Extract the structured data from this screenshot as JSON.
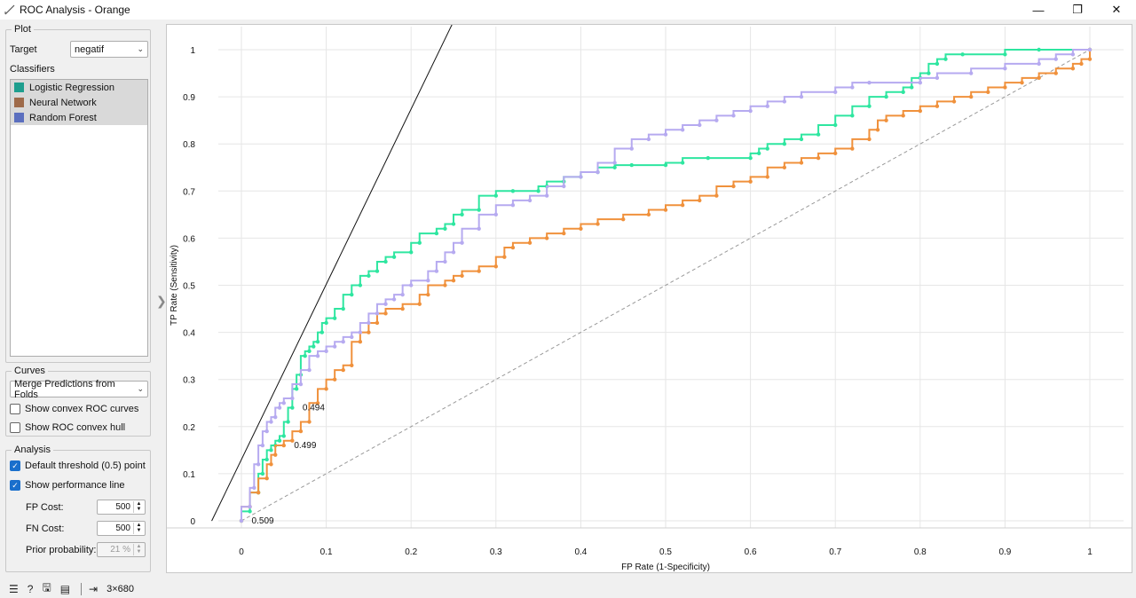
{
  "window": {
    "title": "ROC Analysis - Orange",
    "icons": [
      "app-icon",
      "minimize-icon",
      "restore-icon",
      "close-icon"
    ]
  },
  "left_panel": {
    "plot_group": {
      "title": "Plot",
      "target_label": "Target",
      "target_value": "negatif",
      "classifiers_label": "Classifiers",
      "classifiers": [
        {
          "name": "Logistic Regression",
          "color": "#1e9e8e"
        },
        {
          "name": "Neural Network",
          "color": "#9e6a4a"
        },
        {
          "name": "Random Forest",
          "color": "#5b6fbf"
        }
      ]
    },
    "curves_group": {
      "title": "Curves",
      "mode": "Merge Predictions from Folds",
      "convex_curves_label": "Show convex ROC curves",
      "convex_curves_checked": false,
      "convex_hull_label": "Show ROC convex hull",
      "convex_hull_checked": false
    },
    "analysis_group": {
      "title": "Analysis",
      "default_threshold_label": "Default threshold (0.5) point",
      "default_threshold_checked": true,
      "performance_line_label": "Show performance line",
      "performance_line_checked": true,
      "fp_cost_label": "FP Cost:",
      "fp_cost": "500",
      "fn_cost_label": "FN Cost:",
      "fn_cost": "500",
      "prior_label": "Prior probability:",
      "prior": "21 %"
    }
  },
  "status_bar": {
    "icons": [
      "menu-icon",
      "help-icon",
      "save-icon",
      "report-icon",
      "output-icon"
    ],
    "output_info": "3×680"
  },
  "chart_data": {
    "type": "line",
    "xlabel": "FP Rate (1-Specificity)",
    "ylabel": "TP Rate (Sensitivity)",
    "xlim": [
      0,
      1
    ],
    "ylim": [
      0,
      1
    ],
    "x_ticks": [
      "0",
      "0.1",
      "0.2",
      "0.3",
      "0.4",
      "0.5",
      "0.6",
      "0.7",
      "0.8",
      "0.9",
      "1"
    ],
    "y_ticks": [
      "0",
      "0.1",
      "0.2",
      "0.3",
      "0.4",
      "0.5",
      "0.6",
      "0.7",
      "0.8",
      "0.9",
      "1"
    ],
    "grid": true,
    "diagonal": true,
    "performance_line": {
      "slope": 3.72,
      "intercept": 0.13
    },
    "series": [
      {
        "color": "#2ee6a0",
        "points": [
          [
            0,
            0
          ],
          [
            0.01,
            0.02
          ],
          [
            0.02,
            0.06
          ],
          [
            0.025,
            0.1
          ],
          [
            0.03,
            0.13
          ],
          [
            0.035,
            0.15
          ],
          [
            0.04,
            0.16
          ],
          [
            0.045,
            0.17
          ],
          [
            0.05,
            0.18
          ],
          [
            0.055,
            0.21
          ],
          [
            0.06,
            0.24
          ],
          [
            0.065,
            0.28
          ],
          [
            0.07,
            0.31
          ],
          [
            0.075,
            0.35
          ],
          [
            0.08,
            0.36
          ],
          [
            0.085,
            0.37
          ],
          [
            0.09,
            0.38
          ],
          [
            0.095,
            0.4
          ],
          [
            0.1,
            0.42
          ],
          [
            0.11,
            0.43
          ],
          [
            0.12,
            0.45
          ],
          [
            0.13,
            0.48
          ],
          [
            0.14,
            0.5
          ],
          [
            0.15,
            0.52
          ],
          [
            0.16,
            0.53
          ],
          [
            0.17,
            0.55
          ],
          [
            0.18,
            0.56
          ],
          [
            0.2,
            0.57
          ],
          [
            0.21,
            0.59
          ],
          [
            0.23,
            0.61
          ],
          [
            0.24,
            0.62
          ],
          [
            0.25,
            0.63
          ],
          [
            0.26,
            0.65
          ],
          [
            0.28,
            0.66
          ],
          [
            0.3,
            0.69
          ],
          [
            0.32,
            0.7
          ],
          [
            0.35,
            0.7
          ],
          [
            0.36,
            0.71
          ],
          [
            0.38,
            0.72
          ],
          [
            0.4,
            0.73
          ],
          [
            0.42,
            0.74
          ],
          [
            0.44,
            0.75
          ],
          [
            0.46,
            0.755
          ],
          [
            0.5,
            0.755
          ],
          [
            0.52,
            0.76
          ],
          [
            0.55,
            0.77
          ],
          [
            0.6,
            0.77
          ],
          [
            0.61,
            0.78
          ],
          [
            0.62,
            0.79
          ],
          [
            0.64,
            0.8
          ],
          [
            0.66,
            0.81
          ],
          [
            0.68,
            0.82
          ],
          [
            0.7,
            0.84
          ],
          [
            0.72,
            0.86
          ],
          [
            0.74,
            0.88
          ],
          [
            0.76,
            0.9
          ],
          [
            0.78,
            0.91
          ],
          [
            0.79,
            0.92
          ],
          [
            0.8,
            0.94
          ],
          [
            0.81,
            0.95
          ],
          [
            0.82,
            0.97
          ],
          [
            0.83,
            0.98
          ],
          [
            0.85,
            0.99
          ],
          [
            0.9,
            0.99
          ],
          [
            0.94,
            1.0
          ],
          [
            1.0,
            1.0
          ]
        ]
      },
      {
        "color": "#f0913c",
        "points": [
          [
            0,
            0
          ],
          [
            0.01,
            0.03
          ],
          [
            0.02,
            0.06
          ],
          [
            0.03,
            0.09
          ],
          [
            0.035,
            0.12
          ],
          [
            0.04,
            0.14
          ],
          [
            0.05,
            0.16
          ],
          [
            0.06,
            0.17
          ],
          [
            0.07,
            0.19
          ],
          [
            0.08,
            0.21
          ],
          [
            0.09,
            0.25
          ],
          [
            0.1,
            0.28
          ],
          [
            0.11,
            0.3
          ],
          [
            0.12,
            0.32
          ],
          [
            0.13,
            0.33
          ],
          [
            0.14,
            0.38
          ],
          [
            0.15,
            0.4
          ],
          [
            0.16,
            0.42
          ],
          [
            0.17,
            0.44
          ],
          [
            0.19,
            0.45
          ],
          [
            0.21,
            0.46
          ],
          [
            0.22,
            0.48
          ],
          [
            0.24,
            0.5
          ],
          [
            0.25,
            0.51
          ],
          [
            0.26,
            0.52
          ],
          [
            0.28,
            0.53
          ],
          [
            0.3,
            0.54
          ],
          [
            0.31,
            0.56
          ],
          [
            0.32,
            0.58
          ],
          [
            0.34,
            0.59
          ],
          [
            0.36,
            0.6
          ],
          [
            0.38,
            0.61
          ],
          [
            0.4,
            0.62
          ],
          [
            0.42,
            0.63
          ],
          [
            0.45,
            0.64
          ],
          [
            0.48,
            0.65
          ],
          [
            0.5,
            0.66
          ],
          [
            0.52,
            0.67
          ],
          [
            0.54,
            0.68
          ],
          [
            0.56,
            0.69
          ],
          [
            0.58,
            0.71
          ],
          [
            0.6,
            0.72
          ],
          [
            0.62,
            0.73
          ],
          [
            0.64,
            0.75
          ],
          [
            0.66,
            0.76
          ],
          [
            0.68,
            0.77
          ],
          [
            0.7,
            0.78
          ],
          [
            0.72,
            0.79
          ],
          [
            0.74,
            0.81
          ],
          [
            0.75,
            0.83
          ],
          [
            0.76,
            0.85
          ],
          [
            0.78,
            0.86
          ],
          [
            0.8,
            0.87
          ],
          [
            0.82,
            0.88
          ],
          [
            0.84,
            0.89
          ],
          [
            0.86,
            0.9
          ],
          [
            0.88,
            0.91
          ],
          [
            0.9,
            0.92
          ],
          [
            0.92,
            0.93
          ],
          [
            0.94,
            0.94
          ],
          [
            0.96,
            0.95
          ],
          [
            0.98,
            0.96
          ],
          [
            0.99,
            0.97
          ],
          [
            1.0,
            0.98
          ],
          [
            1.0,
            1.0
          ]
        ]
      },
      {
        "color": "#b6aaf0",
        "points": [
          [
            0,
            0
          ],
          [
            0.01,
            0.03
          ],
          [
            0.015,
            0.07
          ],
          [
            0.02,
            0.12
          ],
          [
            0.025,
            0.16
          ],
          [
            0.03,
            0.19
          ],
          [
            0.035,
            0.21
          ],
          [
            0.04,
            0.22
          ],
          [
            0.045,
            0.24
          ],
          [
            0.05,
            0.25
          ],
          [
            0.06,
            0.26
          ],
          [
            0.07,
            0.29
          ],
          [
            0.08,
            0.32
          ],
          [
            0.09,
            0.35
          ],
          [
            0.1,
            0.36
          ],
          [
            0.11,
            0.37
          ],
          [
            0.12,
            0.38
          ],
          [
            0.13,
            0.39
          ],
          [
            0.14,
            0.4
          ],
          [
            0.15,
            0.42
          ],
          [
            0.16,
            0.44
          ],
          [
            0.17,
            0.46
          ],
          [
            0.18,
            0.47
          ],
          [
            0.19,
            0.48
          ],
          [
            0.2,
            0.5
          ],
          [
            0.22,
            0.51
          ],
          [
            0.23,
            0.53
          ],
          [
            0.24,
            0.55
          ],
          [
            0.25,
            0.57
          ],
          [
            0.26,
            0.59
          ],
          [
            0.28,
            0.62
          ],
          [
            0.3,
            0.65
          ],
          [
            0.32,
            0.67
          ],
          [
            0.34,
            0.68
          ],
          [
            0.36,
            0.69
          ],
          [
            0.38,
            0.71
          ],
          [
            0.4,
            0.73
          ],
          [
            0.42,
            0.74
          ],
          [
            0.44,
            0.76
          ],
          [
            0.46,
            0.79
          ],
          [
            0.48,
            0.81
          ],
          [
            0.5,
            0.82
          ],
          [
            0.52,
            0.83
          ],
          [
            0.54,
            0.84
          ],
          [
            0.56,
            0.85
          ],
          [
            0.58,
            0.86
          ],
          [
            0.6,
            0.87
          ],
          [
            0.62,
            0.88
          ],
          [
            0.64,
            0.89
          ],
          [
            0.66,
            0.9
          ],
          [
            0.7,
            0.91
          ],
          [
            0.72,
            0.92
          ],
          [
            0.74,
            0.93
          ],
          [
            0.8,
            0.93
          ],
          [
            0.82,
            0.94
          ],
          [
            0.86,
            0.95
          ],
          [
            0.9,
            0.96
          ],
          [
            0.94,
            0.97
          ],
          [
            0.96,
            0.98
          ],
          [
            0.98,
            0.99
          ],
          [
            1.0,
            1.0
          ]
        ]
      }
    ],
    "threshold_labels": [
      {
        "text": "0.494",
        "x": 0.07,
        "y": 0.24
      },
      {
        "text": "0.499",
        "x": 0.06,
        "y": 0.16
      },
      {
        "text": "0.509",
        "x": 0.01,
        "y": 0.0
      }
    ]
  }
}
